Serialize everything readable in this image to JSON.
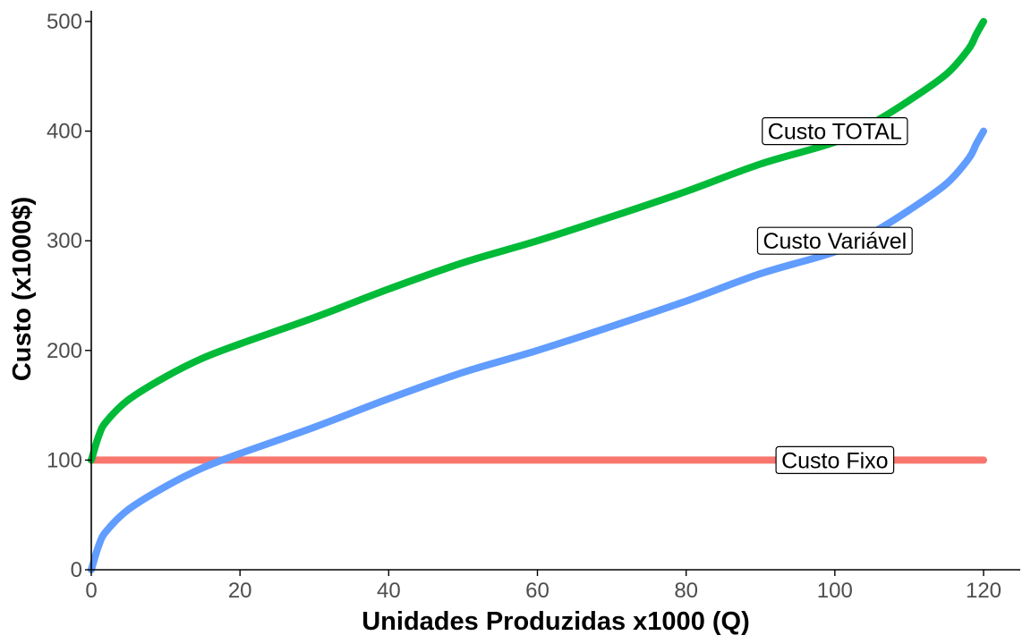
{
  "chart_data": {
    "type": "line",
    "title": "",
    "xlabel": "Unidades Produzidas x1000 (Q)",
    "ylabel": "Custo (x1000$)",
    "xlim": [
      0,
      125
    ],
    "ylim": [
      0,
      510
    ],
    "xticks": [
      0,
      20,
      40,
      60,
      80,
      100,
      120
    ],
    "yticks": [
      0,
      100,
      200,
      300,
      400,
      500
    ],
    "grid": false,
    "legend": "none",
    "series": [
      {
        "name": "Custo Fixo",
        "color": "#F8766D",
        "x": [
          0,
          120
        ],
        "y": [
          100,
          100
        ]
      },
      {
        "name": "Custo Variável",
        "color": "#619CFF",
        "x": [
          0,
          1,
          2,
          5,
          10,
          15,
          20,
          30,
          40,
          50,
          60,
          70,
          80,
          90,
          100,
          105,
          110,
          115,
          118,
          119,
          120
        ],
        "y": [
          0,
          22,
          35,
          55,
          76,
          93,
          106,
          130,
          156,
          180,
          200,
          222,
          245,
          270,
          290,
          307,
          328,
          352,
          375,
          388,
          400
        ]
      },
      {
        "name": "Custo TOTAL",
        "color": "#00BA38",
        "x": [
          0,
          1,
          2,
          5,
          10,
          15,
          20,
          30,
          40,
          50,
          60,
          70,
          80,
          90,
          100,
          105,
          110,
          115,
          118,
          119,
          120
        ],
        "y": [
          100,
          122,
          135,
          155,
          176,
          193,
          206,
          230,
          256,
          280,
          300,
          322,
          345,
          370,
          390,
          407,
          428,
          452,
          475,
          488,
          500
        ]
      }
    ],
    "annotations": [
      {
        "text": "Custo TOTAL",
        "x": 100,
        "y": 400
      },
      {
        "text": "Custo Variável",
        "x": 100,
        "y": 300
      },
      {
        "text": "Custo Fixo",
        "x": 100,
        "y": 100
      }
    ]
  }
}
